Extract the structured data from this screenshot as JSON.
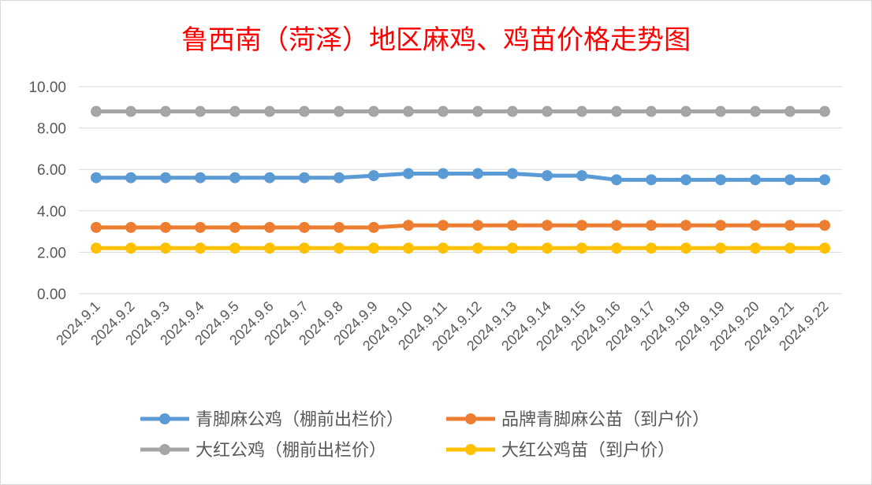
{
  "chart_data": {
    "type": "line",
    "title": "鲁西南（菏泽）地区麻鸡、鸡苗价格走势图",
    "title_color": "#ff0000",
    "xlabel": "",
    "ylabel": "",
    "ylim": [
      0,
      10
    ],
    "yticks": [
      "0.00",
      "2.00",
      "4.00",
      "6.00",
      "8.00",
      "10.00"
    ],
    "grid": true,
    "legend_position": "bottom",
    "categories": [
      "2024.9.1",
      "2024.9.2",
      "2024.9.3",
      "2024.9.4",
      "2024.9.5",
      "2024.9.6",
      "2024.9.7",
      "2024.9.8",
      "2024.9.9",
      "2024.9.10",
      "2024.9.11",
      "2024.9.12",
      "2024.9.13",
      "2024.9.14",
      "2024.9.15",
      "2024.9.16",
      "2024.9.17",
      "2024.9.18",
      "2024.9.19",
      "2024.9.20",
      "2024.9.21",
      "2024.9.22"
    ],
    "series": [
      {
        "name": "青脚麻公鸡（棚前出栏价）",
        "color": "#5b9bd5",
        "values": [
          5.6,
          5.6,
          5.6,
          5.6,
          5.6,
          5.6,
          5.6,
          5.6,
          5.7,
          5.8,
          5.8,
          5.8,
          5.8,
          5.7,
          5.7,
          5.5,
          5.5,
          5.5,
          5.5,
          5.5,
          5.5,
          5.5
        ]
      },
      {
        "name": "品牌青脚麻公苗（到户价）",
        "color": "#ed7d31",
        "values": [
          3.2,
          3.2,
          3.2,
          3.2,
          3.2,
          3.2,
          3.2,
          3.2,
          3.2,
          3.3,
          3.3,
          3.3,
          3.3,
          3.3,
          3.3,
          3.3,
          3.3,
          3.3,
          3.3,
          3.3,
          3.3,
          3.3
        ]
      },
      {
        "name": "大红公鸡（棚前出栏价）",
        "color": "#a5a5a5",
        "values": [
          8.8,
          8.8,
          8.8,
          8.8,
          8.8,
          8.8,
          8.8,
          8.8,
          8.8,
          8.8,
          8.8,
          8.8,
          8.8,
          8.8,
          8.8,
          8.8,
          8.8,
          8.8,
          8.8,
          8.8,
          8.8,
          8.8
        ]
      },
      {
        "name": "大红公鸡苗（到户价）",
        "color": "#ffc000",
        "values": [
          2.2,
          2.2,
          2.2,
          2.2,
          2.2,
          2.2,
          2.2,
          2.2,
          2.2,
          2.2,
          2.2,
          2.2,
          2.2,
          2.2,
          2.2,
          2.2,
          2.2,
          2.2,
          2.2,
          2.2,
          2.2,
          2.2
        ]
      }
    ]
  }
}
